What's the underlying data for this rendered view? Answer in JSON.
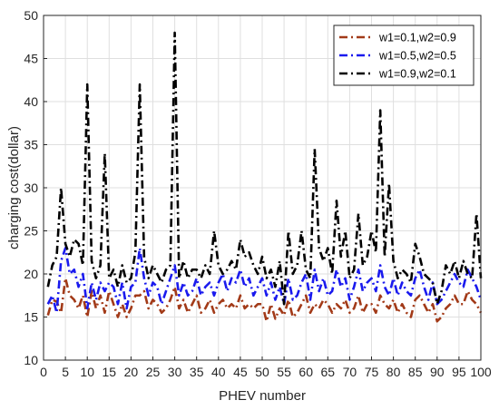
{
  "chart_data": {
    "type": "line",
    "title": "",
    "xlabel": "PHEV number",
    "ylabel": "charging cost(dollar)",
    "xlim": [
      0,
      100
    ],
    "ylim": [
      10,
      50
    ],
    "xticks": [
      0,
      5,
      10,
      15,
      20,
      25,
      30,
      35,
      40,
      45,
      50,
      55,
      60,
      65,
      70,
      75,
      80,
      85,
      90,
      95,
      100
    ],
    "yticks": [
      10,
      15,
      20,
      25,
      30,
      35,
      40,
      45,
      50
    ],
    "grid": true,
    "legend_position": "top-right",
    "x": [
      1,
      2,
      3,
      4,
      5,
      6,
      7,
      8,
      9,
      10,
      11,
      12,
      13,
      14,
      15,
      16,
      17,
      18,
      19,
      20,
      21,
      22,
      23,
      24,
      25,
      26,
      27,
      28,
      29,
      30,
      31,
      32,
      33,
      34,
      35,
      36,
      37,
      38,
      39,
      40,
      41,
      42,
      43,
      44,
      45,
      46,
      47,
      48,
      49,
      50,
      51,
      52,
      53,
      54,
      55,
      56,
      57,
      58,
      59,
      60,
      61,
      62,
      63,
      64,
      65,
      66,
      67,
      68,
      69,
      70,
      71,
      72,
      73,
      74,
      75,
      76,
      77,
      78,
      79,
      80,
      81,
      82,
      83,
      84,
      85,
      86,
      87,
      88,
      89,
      90,
      91,
      92,
      93,
      94,
      95,
      96,
      97,
      98,
      99,
      100
    ],
    "series": [
      {
        "name": "w1=0.1,w2=0.9",
        "color": "#a23a18",
        "dash": "dash-dot",
        "values": [
          15.2,
          17.0,
          16.8,
          15.5,
          19.5,
          17.5,
          17.0,
          16.0,
          17.5,
          15.0,
          18.0,
          16.0,
          17.5,
          15.5,
          18.0,
          16.5,
          15.0,
          16.5,
          15.0,
          16.0,
          17.5,
          17.5,
          18.0,
          16.0,
          17.0,
          16.5,
          15.5,
          16.0,
          17.0,
          18.5,
          16.0,
          17.0,
          15.5,
          16.5,
          17.5,
          15.5,
          16.0,
          17.0,
          15.5,
          16.5,
          17.0,
          16.0,
          16.5,
          16.0,
          17.5,
          16.0,
          16.5,
          16.0,
          16.5,
          16.5,
          14.5,
          16.5,
          14.8,
          16.0,
          15.2,
          17.0,
          15.0,
          15.5,
          16.5,
          17.5,
          15.5,
          16.5,
          16.0,
          17.0,
          16.5,
          15.5,
          16.5,
          16.0,
          17.0,
          15.5,
          16.0,
          17.5,
          15.5,
          16.5,
          16.5,
          15.5,
          17.5,
          16.5,
          16.0,
          17.0,
          15.5,
          16.5,
          15.5,
          15.0,
          17.0,
          17.5,
          16.5,
          15.5,
          16.5,
          14.5,
          15.0,
          16.0,
          16.5,
          17.5,
          16.5,
          16.5,
          18.0,
          17.0,
          16.5,
          15.5
        ]
      },
      {
        "name": "w1=0.5,w2=0.5",
        "color": "#1a1aee",
        "dash": "dash-dot",
        "values": [
          16.5,
          17.5,
          15.5,
          21.5,
          23.0,
          20.0,
          20.5,
          18.5,
          20.0,
          16.0,
          19.0,
          17.0,
          19.0,
          18.0,
          19.0,
          18.5,
          16.5,
          19.0,
          16.0,
          18.5,
          19.0,
          23.0,
          19.5,
          17.5,
          19.0,
          18.5,
          16.5,
          18.0,
          19.5,
          21.0,
          17.5,
          19.0,
          17.5,
          18.0,
          19.5,
          17.5,
          18.5,
          19.0,
          17.5,
          19.0,
          20.0,
          18.0,
          19.5,
          19.0,
          20.5,
          18.5,
          19.5,
          17.5,
          18.5,
          19.5,
          17.5,
          19.0,
          17.0,
          18.5,
          16.5,
          19.5,
          17.0,
          17.5,
          19.0,
          20.0,
          17.0,
          20.5,
          18.0,
          19.5,
          17.5,
          18.0,
          20.5,
          18.5,
          19.5,
          17.0,
          18.5,
          20.5,
          18.0,
          19.0,
          19.5,
          18.0,
          21.0,
          18.5,
          17.5,
          19.5,
          17.5,
          19.0,
          18.0,
          17.5,
          19.5,
          20.5,
          18.5,
          17.0,
          19.0,
          16.5,
          17.0,
          18.0,
          19.0,
          20.0,
          19.0,
          18.5,
          20.5,
          19.5,
          18.5,
          17.0
        ]
      },
      {
        "name": "w1=0.9,w2=0.1",
        "color": "#000000",
        "dash": "dash-dot",
        "values": [
          18.5,
          21.0,
          22.0,
          30.0,
          23.5,
          22.0,
          24.0,
          23.5,
          21.0,
          42.0,
          21.5,
          19.5,
          21.0,
          34.0,
          19.5,
          20.5,
          18.5,
          21.0,
          19.0,
          19.5,
          22.5,
          42.0,
          22.0,
          19.5,
          21.0,
          20.0,
          19.0,
          20.5,
          21.0,
          48.0,
          19.5,
          21.5,
          19.5,
          20.5,
          20.5,
          19.5,
          21.0,
          20.0,
          25.0,
          21.0,
          20.0,
          20.5,
          21.5,
          20.5,
          24.0,
          22.0,
          22.5,
          21.0,
          20.0,
          22.0,
          19.5,
          20.5,
          18.5,
          21.5,
          16.5,
          25.0,
          20.0,
          21.0,
          25.0,
          20.5,
          19.5,
          34.5,
          23.0,
          21.5,
          23.0,
          20.0,
          28.5,
          22.0,
          25.0,
          19.5,
          20.5,
          27.0,
          21.0,
          22.0,
          25.0,
          22.5,
          39.0,
          22.0,
          30.5,
          21.5,
          19.5,
          20.5,
          20.0,
          19.0,
          23.5,
          22.0,
          20.0,
          19.5,
          19.0,
          16.5,
          18.0,
          21.0,
          20.0,
          21.5,
          19.5,
          21.5,
          20.0,
          19.5,
          27.0,
          19.5
        ]
      }
    ]
  }
}
